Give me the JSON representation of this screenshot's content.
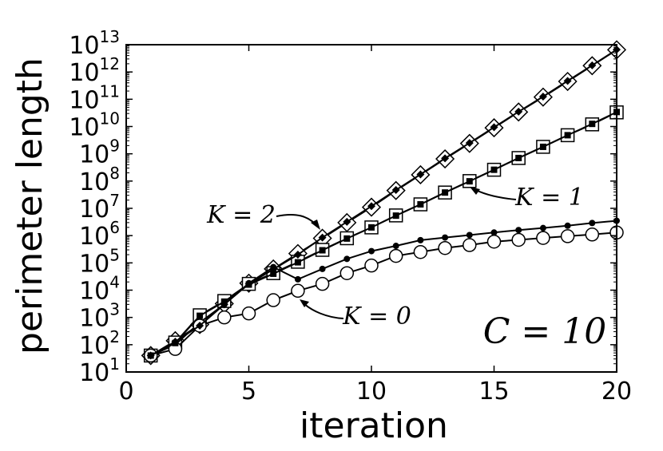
{
  "chart_data": {
    "type": "line",
    "xlabel": "iteration",
    "ylabel": "perimeter length",
    "xlim": [
      0,
      20
    ],
    "ylim_log10": [
      1,
      13
    ],
    "y_scale": "log",
    "x_ticks": [
      "0",
      "5",
      "10",
      "15",
      "20"
    ],
    "y_ticks": [
      {
        "base": "10",
        "exp": "1"
      },
      {
        "base": "10",
        "exp": "2"
      },
      {
        "base": "10",
        "exp": "3"
      },
      {
        "base": "10",
        "exp": "4"
      },
      {
        "base": "10",
        "exp": "5"
      },
      {
        "base": "10",
        "exp": "6"
      },
      {
        "base": "10",
        "exp": "7"
      },
      {
        "base": "10",
        "exp": "8"
      },
      {
        "base": "10",
        "exp": "9"
      },
      {
        "base": "10",
        "exp": "10"
      },
      {
        "base": "10",
        "exp": "11"
      },
      {
        "base": "10",
        "exp": "12"
      },
      {
        "base": "10",
        "exp": "13"
      }
    ],
    "grid": false,
    "panel_label": "C = 10",
    "annotations": [
      {
        "text": "K = 2",
        "series": "K=2 diamonds"
      },
      {
        "text": "K = 1",
        "series": "K=1 squares"
      },
      {
        "text": "K = 0",
        "series": "K=0 circles"
      }
    ],
    "x": [
      1,
      2,
      3,
      4,
      5,
      6,
      7,
      8,
      9,
      10,
      11,
      12,
      13,
      14,
      15,
      16,
      17,
      18,
      19,
      20
    ],
    "series": [
      {
        "marker": "diamond-open",
        "group": "K=2",
        "values": [
          40,
          140,
          550,
          3200,
          18000,
          60000,
          220000,
          800000,
          3000000,
          11000000,
          45000000,
          170000000,
          650000000,
          2400000000,
          9000000000,
          34000000000,
          120000000000,
          450000000000,
          1700000000000,
          6500000000000
        ]
      },
      {
        "marker": "diamond-filled",
        "group": "K=2",
        "values": [
          40,
          130,
          500,
          3000,
          17000,
          58000,
          200000,
          850000,
          3200000,
          12000000,
          47000000,
          175000000,
          680000000,
          2500000000,
          9400000000,
          35000000000,
          125000000000,
          470000000000,
          1750000000000,
          6600000000000
        ]
      },
      {
        "marker": "square-open",
        "group": "K=1",
        "values": [
          40,
          120,
          1200,
          4000,
          17000,
          42000,
          110000,
          300000,
          800000,
          2000000,
          5500000,
          14000000,
          38000000,
          100000000,
          260000000,
          700000000,
          1800000000,
          4800000000,
          12000000000,
          33000000000
        ]
      },
      {
        "marker": "square-filled",
        "group": "K=1",
        "values": [
          40,
          115,
          1150,
          3800,
          16000,
          40000,
          105000,
          290000,
          780000,
          2000000,
          5400000,
          14000000,
          38000000,
          98000000,
          260000000,
          700000000,
          1800000000,
          4800000000,
          12500000000,
          34000000000
        ]
      },
      {
        "marker": "dot",
        "group": "K=0",
        "values": [
          40,
          100,
          650,
          3000,
          18000,
          70000,
          25000,
          60000,
          140000,
          270000,
          420000,
          680000,
          850000,
          1050000,
          1300000,
          1600000,
          1900000,
          2300000,
          2900000,
          3500000
        ]
      },
      {
        "marker": "circle-open",
        "group": "K=0",
        "values": [
          40,
          70,
          500,
          1000,
          1400,
          4300,
          9500,
          17000,
          42000,
          80000,
          180000,
          250000,
          350000,
          450000,
          600000,
          700000,
          820000,
          950000,
          1100000,
          1300000
        ]
      }
    ]
  }
}
